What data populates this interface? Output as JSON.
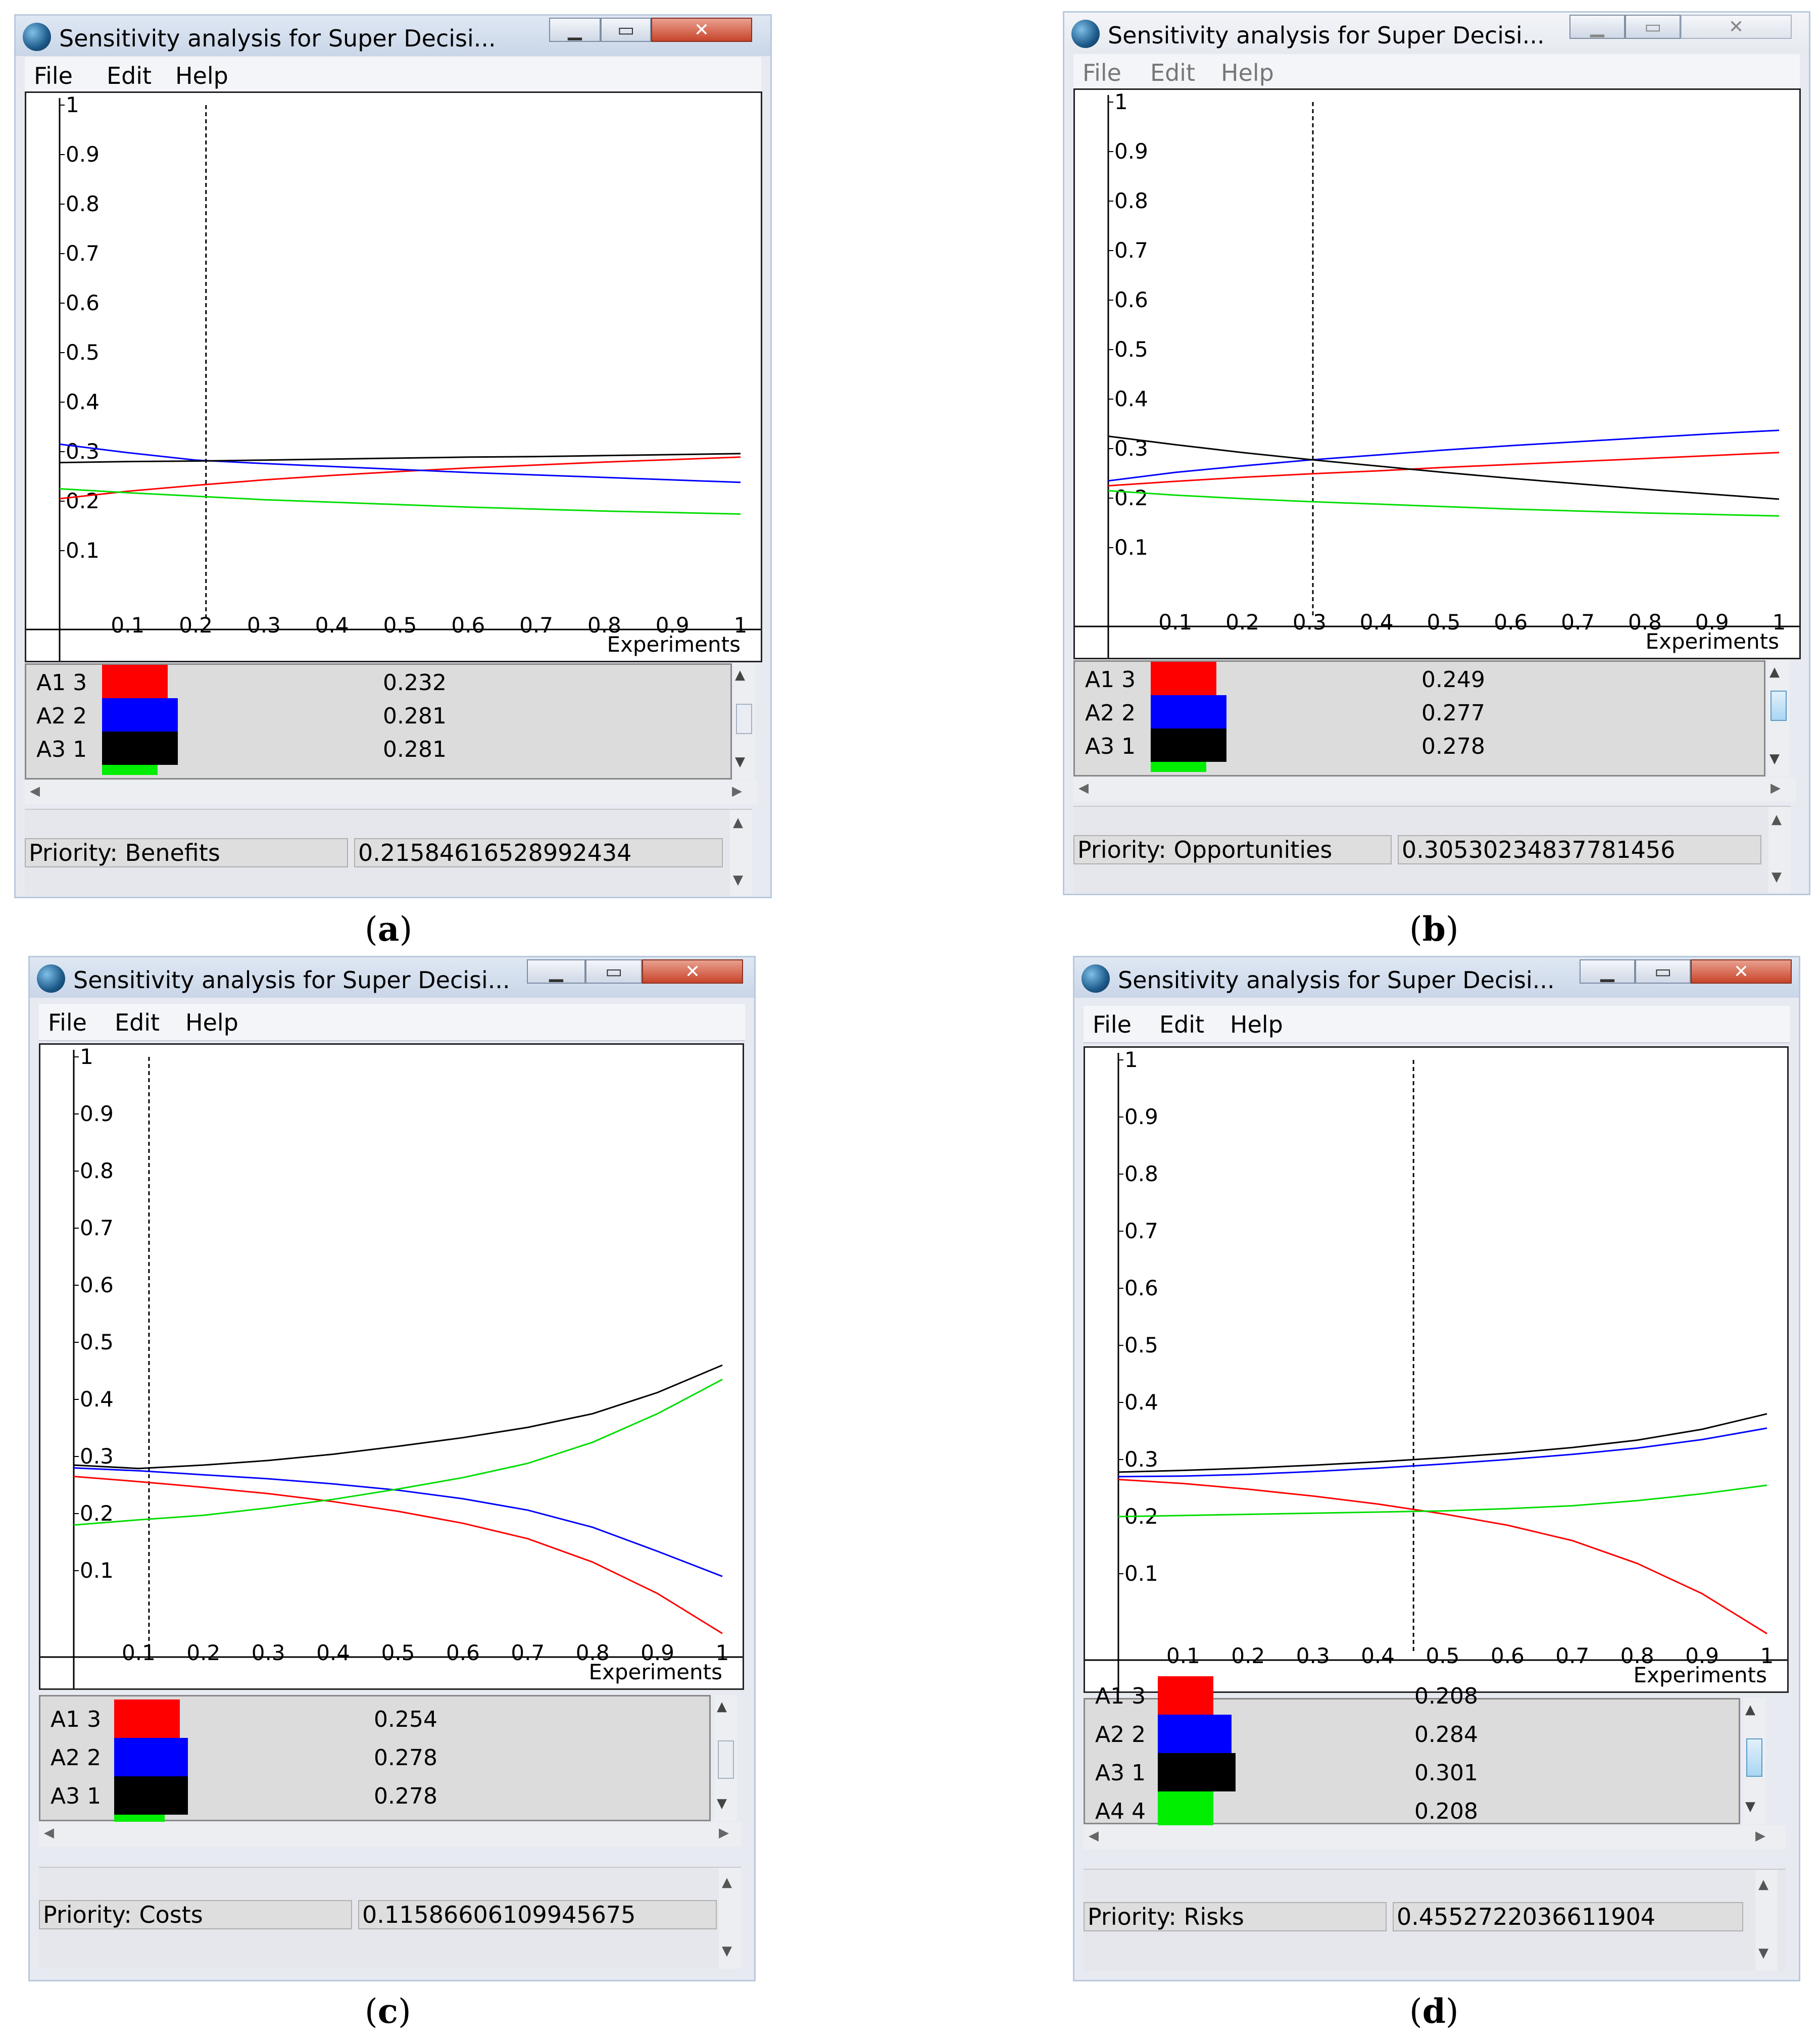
{
  "panels": [
    {
      "id": "a",
      "window_title": "Sensitivity analysis for Super Decisi...",
      "active": true,
      "menu": [
        "File",
        "Edit",
        "Help"
      ],
      "caption": "a",
      "chart_data": {
        "type": "line",
        "xlabel": "Experiments",
        "xlim": [
          0,
          1
        ],
        "ylim": [
          0,
          1
        ],
        "x_ticks": [
          "0.1",
          "0.2",
          "0.3",
          "0.4",
          "0.5",
          "0.6",
          "0.7",
          "0.8",
          "0.9",
          "1"
        ],
        "y_ticks": [
          "0.1",
          "0.2",
          "0.3",
          "0.4",
          "0.5",
          "0.6",
          "0.7",
          "0.8",
          "0.9",
          "1"
        ],
        "marker_x": 0.215,
        "x": [
          0,
          0.1,
          0.2,
          0.3,
          0.4,
          0.5,
          0.6,
          0.7,
          0.8,
          0.9,
          1.0
        ],
        "series": [
          {
            "color": "#ff0000",
            "values": [
              0.205,
              0.22,
              0.232,
              0.243,
              0.252,
              0.26,
              0.267,
              0.273,
              0.279,
              0.284,
              0.289
            ]
          },
          {
            "color": "#0000ff",
            "values": [
              0.315,
              0.298,
              0.283,
              0.276,
              0.27,
              0.264,
              0.258,
              0.253,
              0.248,
              0.243,
              0.238
            ]
          },
          {
            "color": "#000000",
            "values": [
              0.278,
              0.28,
              0.281,
              0.283,
              0.285,
              0.287,
              0.289,
              0.29,
              0.292,
              0.294,
              0.296
            ]
          },
          {
            "color": "#00dd00",
            "values": [
              0.225,
              0.217,
              0.21,
              0.203,
              0.198,
              0.193,
              0.188,
              0.184,
              0.18,
              0.177,
              0.174
            ]
          }
        ]
      },
      "legend": [
        {
          "label": "A1  3",
          "color": "#ff0000",
          "value": "0.232"
        },
        {
          "label": "A2  2",
          "color": "#0000ff",
          "value": "0.281"
        },
        {
          "label": "A3  1",
          "color": "#000000",
          "value": "0.281"
        }
      ],
      "partial_color": "#00ee00",
      "status_label": "Priority: Benefits",
      "status_value": "0.21584616528992434"
    },
    {
      "id": "b",
      "window_title": "Sensitivity analysis for Super Decisi...",
      "active": false,
      "menu": [
        "File",
        "Edit",
        "Help"
      ],
      "caption": "b",
      "chart_data": {
        "type": "line",
        "xlabel": "Experiments",
        "xlim": [
          0,
          1
        ],
        "ylim": [
          0,
          1
        ],
        "x_ticks": [
          "0.1",
          "0.2",
          "0.3",
          "0.4",
          "0.5",
          "0.6",
          "0.7",
          "0.8",
          "0.9",
          "1"
        ],
        "y_ticks": [
          "0.1",
          "0.2",
          "0.3",
          "0.4",
          "0.5",
          "0.6",
          "0.7",
          "0.8",
          "0.9",
          "1"
        ],
        "marker_x": 0.305,
        "x": [
          0,
          0.1,
          0.2,
          0.3,
          0.4,
          0.5,
          0.6,
          0.7,
          0.8,
          0.9,
          1.0
        ],
        "series": [
          {
            "color": "#ff0000",
            "values": [
              0.225,
              0.234,
              0.242,
              0.249,
              0.255,
              0.262,
              0.268,
              0.274,
              0.28,
              0.286,
              0.292
            ]
          },
          {
            "color": "#0000ff",
            "values": [
              0.235,
              0.252,
              0.265,
              0.277,
              0.287,
              0.297,
              0.306,
              0.314,
              0.322,
              0.33,
              0.337
            ]
          },
          {
            "color": "#000000",
            "values": [
              0.325,
              0.308,
              0.292,
              0.278,
              0.265,
              0.252,
              0.24,
              0.229,
              0.218,
              0.208,
              0.198
            ]
          },
          {
            "color": "#00dd00",
            "values": [
              0.215,
              0.206,
              0.199,
              0.193,
              0.188,
              0.183,
              0.178,
              0.174,
              0.17,
              0.167,
              0.164
            ]
          }
        ]
      },
      "legend": [
        {
          "label": "A1  3",
          "color": "#ff0000",
          "value": "0.249"
        },
        {
          "label": "A2  2",
          "color": "#0000ff",
          "value": "0.277"
        },
        {
          "label": "A3  1",
          "color": "#000000",
          "value": "0.278"
        }
      ],
      "partial_color": "#00ee00",
      "status_label": "Priority: Opportunities",
      "status_value": "0.30530234837781456"
    },
    {
      "id": "c",
      "window_title": "Sensitivity analysis for Super Decisi...",
      "active": true,
      "menu": [
        "File",
        "Edit",
        "Help"
      ],
      "caption": "c",
      "chart_data": {
        "type": "line",
        "xlabel": "Experiments",
        "xlim": [
          0,
          1
        ],
        "ylim": [
          0,
          1
        ],
        "x_ticks": [
          "0.1",
          "0.2",
          "0.3",
          "0.4",
          "0.5",
          "0.6",
          "0.7",
          "0.8",
          "0.9",
          "1"
        ],
        "y_ticks": [
          "0.1",
          "0.2",
          "0.3",
          "0.4",
          "0.5",
          "0.6",
          "0.7",
          "0.8",
          "0.9",
          "1"
        ],
        "marker_x": 0.116,
        "x": [
          0,
          0.1,
          0.2,
          0.3,
          0.4,
          0.5,
          0.6,
          0.7,
          0.8,
          0.9,
          1.0
        ],
        "series": [
          {
            "color": "#ff0000",
            "values": [
              0.265,
              0.256,
              0.246,
              0.235,
              0.221,
              0.204,
              0.183,
              0.156,
              0.115,
              0.06,
              -0.01
            ]
          },
          {
            "color": "#0000ff",
            "values": [
              0.28,
              0.275,
              0.268,
              0.261,
              0.252,
              0.241,
              0.226,
              0.206,
              0.176,
              0.134,
              0.09
            ]
          },
          {
            "color": "#000000",
            "values": [
              0.285,
              0.279,
              0.285,
              0.293,
              0.304,
              0.318,
              0.333,
              0.351,
              0.375,
              0.412,
              0.46
            ]
          },
          {
            "color": "#00dd00",
            "values": [
              0.18,
              0.189,
              0.197,
              0.21,
              0.225,
              0.243,
              0.263,
              0.288,
              0.325,
              0.375,
              0.435
            ]
          }
        ]
      },
      "legend": [
        {
          "label": "A1  3",
          "color": "#ff0000",
          "value": "0.254"
        },
        {
          "label": "A2  2",
          "color": "#0000ff",
          "value": "0.278"
        },
        {
          "label": "A3  1",
          "color": "#000000",
          "value": "0.278"
        }
      ],
      "partial_color": "#00ee00",
      "status_label": "Priority: Costs",
      "status_value": "0.11586606109945675"
    },
    {
      "id": "d",
      "window_title": "Sensitivity analysis for Super Decisi...",
      "active": true,
      "menu": [
        "File",
        "Edit",
        "Help"
      ],
      "caption": "d",
      "chart_data": {
        "type": "line",
        "xlabel": "Experiments",
        "xlim": [
          0,
          1
        ],
        "ylim": [
          0,
          1
        ],
        "x_ticks": [
          "0.1",
          "0.2",
          "0.3",
          "0.4",
          "0.5",
          "0.6",
          "0.7",
          "0.8",
          "0.9",
          "1"
        ],
        "y_ticks": [
          "0.1",
          "0.2",
          "0.3",
          "0.4",
          "0.5",
          "0.6",
          "0.7",
          "0.8",
          "0.9",
          "1"
        ],
        "marker_x": 0.455,
        "x": [
          0,
          0.1,
          0.2,
          0.3,
          0.4,
          0.5,
          0.6,
          0.7,
          0.8,
          0.9,
          1.0
        ],
        "series": [
          {
            "color": "#ff0000",
            "values": [
              0.265,
              0.258,
              0.248,
              0.236,
              0.222,
              0.205,
              0.185,
              0.158,
              0.118,
              0.065,
              -0.005
            ]
          },
          {
            "color": "#0000ff",
            "values": [
              0.27,
              0.271,
              0.274,
              0.279,
              0.285,
              0.292,
              0.3,
              0.309,
              0.32,
              0.335,
              0.355
            ]
          },
          {
            "color": "#000000",
            "values": [
              0.278,
              0.281,
              0.285,
              0.29,
              0.296,
              0.303,
              0.311,
              0.321,
              0.334,
              0.353,
              0.38
            ]
          },
          {
            "color": "#00dd00",
            "values": [
              0.2,
              0.202,
              0.204,
              0.206,
              0.208,
              0.21,
              0.214,
              0.219,
              0.228,
              0.24,
              0.255
            ]
          }
        ]
      },
      "legend": [
        {
          "label": "A1  3",
          "color": "#ff0000",
          "value": "0.208"
        },
        {
          "label": "A2  2",
          "color": "#0000ff",
          "value": "0.284"
        },
        {
          "label": "A3  1",
          "color": "#000000",
          "value": "0.301"
        },
        {
          "label": "A4  4",
          "color": "#00ee00",
          "value": "0.208"
        }
      ],
      "partial_color": "",
      "status_label": "Priority: Risks",
      "status_value": "0.4552722036611904"
    }
  ]
}
